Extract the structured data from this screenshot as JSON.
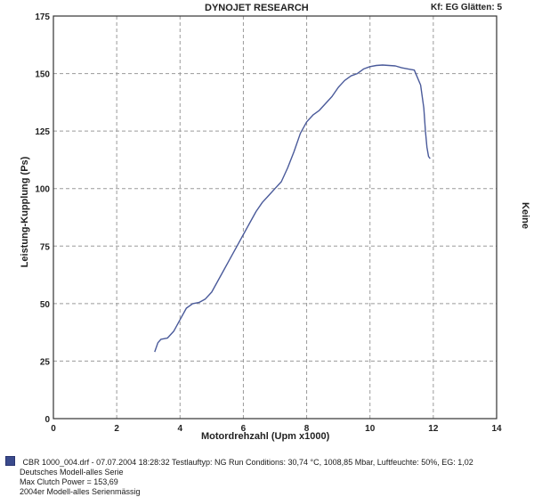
{
  "chart_data": {
    "type": "line",
    "title": "DYNOJET RESEARCH",
    "header_right": "Kf: EG  Glätten: 5",
    "xlabel": "Motordrehzahl (Upm x1000)",
    "ylabel": "Leistung-Kupplung (Ps)",
    "y2label": "Keine",
    "xlim": [
      0,
      14
    ],
    "ylim": [
      0,
      175
    ],
    "xticks": [
      "0",
      "2",
      "4",
      "6",
      "8",
      "10",
      "12",
      "14"
    ],
    "yticks": [
      "0",
      "25",
      "50",
      "75",
      "100",
      "125",
      "150",
      "175"
    ],
    "grid": true,
    "line_color": "#4a5a9a",
    "series": [
      {
        "name": "CBR 1000_004.drf - 07.07.2004 18:28:32",
        "x": [
          3.2,
          3.3,
          3.4,
          3.6,
          3.8,
          4.0,
          4.2,
          4.4,
          4.6,
          4.8,
          5.0,
          5.2,
          5.4,
          5.6,
          5.8,
          6.0,
          6.2,
          6.4,
          6.6,
          6.8,
          7.0,
          7.2,
          7.4,
          7.6,
          7.8,
          8.0,
          8.2,
          8.4,
          8.6,
          8.8,
          9.0,
          9.2,
          9.4,
          9.6,
          9.8,
          10.0,
          10.2,
          10.4,
          10.6,
          10.8,
          11.0,
          11.2,
          11.4,
          11.6,
          11.7,
          11.75,
          11.8,
          11.85,
          11.9
        ],
        "y": [
          29,
          33,
          34.5,
          35,
          38,
          43,
          48,
          50,
          50.5,
          52,
          55,
          60,
          65,
          70,
          75,
          80,
          85,
          90,
          94,
          97,
          100,
          103,
          109,
          116,
          124,
          129,
          132,
          134,
          137,
          140,
          144,
          147,
          149,
          150,
          152,
          153,
          153.5,
          153.69,
          153.5,
          153.3,
          152.5,
          152,
          151.5,
          145,
          135,
          125,
          118,
          114,
          113
        ]
      }
    ]
  },
  "legend": {
    "file_line": "CBR 1000_004.drf - 07.07.2004 18:28:32  Testlauftyp: NG  Run Conditions: 30,74 °C, 1008,85 Mbar,  Luftfeuchte: 50%, EG: 1,02",
    "model_line": "Deutsches Modell-alles Serie",
    "max_power_line": "Max Clutch Power = 153,69",
    "note_line": "2004er Modell-alles Serienmässig"
  }
}
